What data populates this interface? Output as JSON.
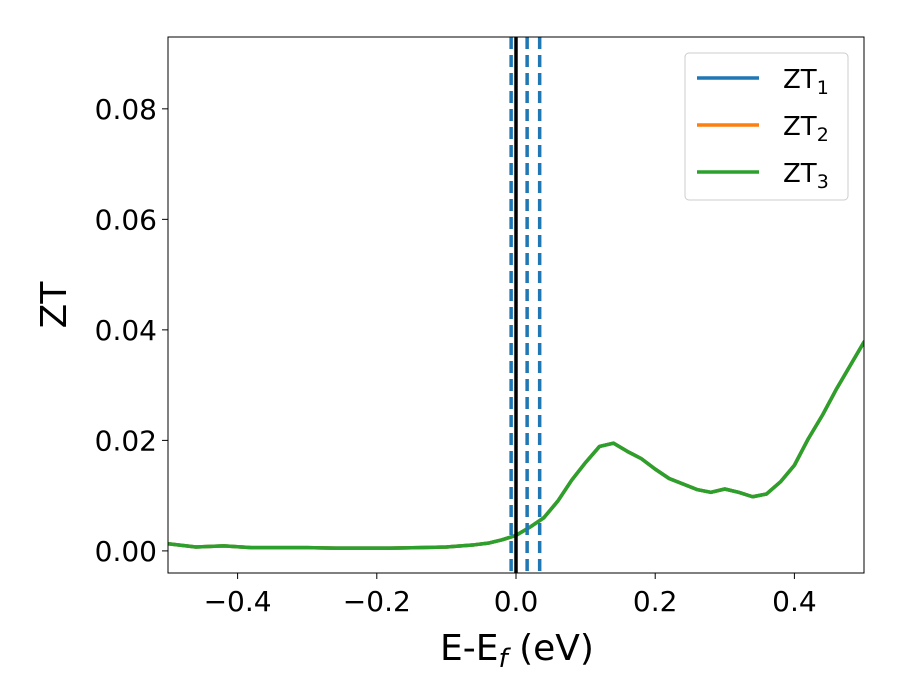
{
  "chart_data": {
    "type": "line",
    "xlabel": "E-E",
    "xlabel_sub": "f",
    "xlabel_unit": " (eV)",
    "ylabel": "ZT",
    "xlim": [
      -0.5,
      0.5
    ],
    "ylim": [
      -0.004,
      0.093
    ],
    "x_ticks": [
      -0.4,
      -0.2,
      0.0,
      0.2,
      0.4
    ],
    "x_tick_labels": [
      "−0.4",
      "−0.2",
      "0.0",
      "0.2",
      "0.4"
    ],
    "y_ticks": [
      0.0,
      0.02,
      0.04,
      0.06,
      0.08
    ],
    "y_tick_labels": [
      "0.00",
      "0.02",
      "0.04",
      "0.06",
      "0.08"
    ],
    "grid": false,
    "legend_position": "top-right",
    "series": [
      {
        "name": "ZT",
        "name_sub": "1",
        "color": "#1f77b4",
        "x": [
          -0.5,
          -0.46,
          -0.42,
          -0.38,
          -0.34,
          -0.3,
          -0.26,
          -0.22,
          -0.18,
          -0.14,
          -0.1,
          -0.06,
          -0.04,
          -0.02,
          0.0,
          0.02,
          0.04,
          0.06,
          0.08,
          0.1,
          0.12,
          0.14,
          0.16,
          0.18,
          0.2,
          0.22,
          0.24,
          0.26,
          0.28,
          0.3,
          0.32,
          0.34,
          0.36,
          0.38,
          0.4,
          0.42,
          0.44,
          0.46,
          0.48,
          0.5
        ],
        "y": [
          0.0013,
          0.0007,
          0.0009,
          0.0006,
          0.0006,
          0.0006,
          0.0005,
          0.0005,
          0.0005,
          0.0006,
          0.0007,
          0.0011,
          0.0014,
          0.002,
          0.0028,
          0.0043,
          0.006,
          0.009,
          0.0128,
          0.016,
          0.0189,
          0.0195,
          0.018,
          0.0167,
          0.0148,
          0.0131,
          0.0121,
          0.0111,
          0.0106,
          0.0112,
          0.0106,
          0.0098,
          0.0103,
          0.0125,
          0.0155,
          0.0203,
          0.0245,
          0.0292,
          0.0335,
          0.0378
        ]
      },
      {
        "name": "ZT",
        "name_sub": "2",
        "color": "#ff7f0e",
        "x": [
          -0.5,
          -0.46,
          -0.42,
          -0.38,
          -0.34,
          -0.3,
          -0.26,
          -0.22,
          -0.18,
          -0.14,
          -0.1,
          -0.06,
          -0.04,
          -0.02,
          0.0,
          0.02,
          0.04,
          0.06,
          0.08,
          0.1,
          0.12,
          0.14,
          0.16,
          0.18,
          0.2,
          0.22,
          0.24,
          0.26,
          0.28,
          0.3,
          0.32,
          0.34,
          0.36,
          0.38,
          0.4,
          0.42,
          0.44,
          0.46,
          0.48,
          0.5
        ],
        "y": [
          0.0013,
          0.0007,
          0.0009,
          0.0006,
          0.0006,
          0.0006,
          0.0005,
          0.0005,
          0.0005,
          0.0006,
          0.0007,
          0.0011,
          0.0014,
          0.002,
          0.0028,
          0.0043,
          0.006,
          0.009,
          0.0128,
          0.016,
          0.0189,
          0.0195,
          0.018,
          0.0167,
          0.0148,
          0.0131,
          0.0121,
          0.0111,
          0.0106,
          0.0112,
          0.0106,
          0.0098,
          0.0103,
          0.0125,
          0.0155,
          0.0203,
          0.0245,
          0.0292,
          0.0335,
          0.0378
        ]
      },
      {
        "name": "ZT",
        "name_sub": "3",
        "color": "#2ca02c",
        "x": [
          -0.5,
          -0.46,
          -0.42,
          -0.38,
          -0.34,
          -0.3,
          -0.26,
          -0.22,
          -0.18,
          -0.14,
          -0.1,
          -0.06,
          -0.04,
          -0.02,
          0.0,
          0.02,
          0.04,
          0.06,
          0.08,
          0.1,
          0.12,
          0.14,
          0.16,
          0.18,
          0.2,
          0.22,
          0.24,
          0.26,
          0.28,
          0.3,
          0.32,
          0.34,
          0.36,
          0.38,
          0.4,
          0.42,
          0.44,
          0.46,
          0.48,
          0.5
        ],
        "y": [
          0.0013,
          0.0007,
          0.0009,
          0.0006,
          0.0006,
          0.0006,
          0.0005,
          0.0005,
          0.0005,
          0.0006,
          0.0007,
          0.0011,
          0.0014,
          0.002,
          0.0028,
          0.0043,
          0.006,
          0.009,
          0.0128,
          0.016,
          0.0189,
          0.0195,
          0.018,
          0.0167,
          0.0148,
          0.0131,
          0.0121,
          0.0111,
          0.0106,
          0.0112,
          0.0106,
          0.0098,
          0.0103,
          0.0125,
          0.0155,
          0.0203,
          0.0245,
          0.0292,
          0.0335,
          0.0378
        ]
      }
    ],
    "vertical_lines": [
      {
        "x": -0.007,
        "color": "#1f77b4",
        "style": "dashed"
      },
      {
        "x": 0.016,
        "color": "#1f77b4",
        "style": "dashed"
      },
      {
        "x": 0.034,
        "color": "#1f77b4",
        "style": "dashed"
      },
      {
        "x": 0.0,
        "color": "#000000",
        "style": "solid"
      }
    ]
  }
}
